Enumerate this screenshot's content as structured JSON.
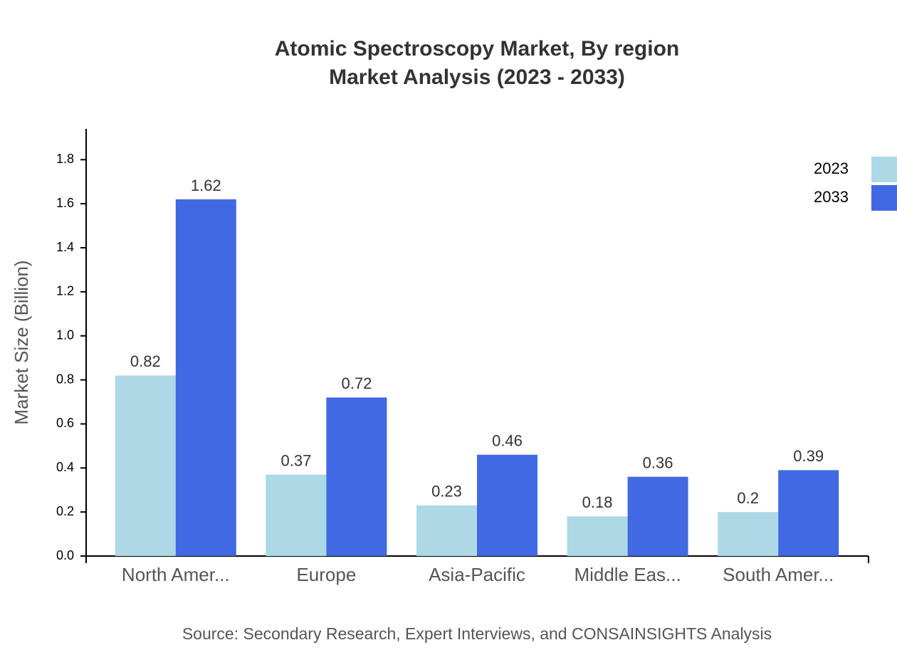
{
  "chart_data": {
    "type": "bar",
    "title": "Atomic Spectroscopy Market, By region",
    "subtitle": "Market Analysis (2023 - 2033)",
    "y_label": "Market Size (Billion)",
    "source": "Source: Secondary Research, Expert Interviews, and CONSAINSIGHTS Analysis",
    "categories": [
      "North Amer...",
      "Europe",
      "Asia-Pacific",
      "Middle Eas...",
      "South Amer..."
    ],
    "series": [
      {
        "name": "2023",
        "color": "#add8e6",
        "values": [
          0.82,
          0.37,
          0.23,
          0.18,
          0.2
        ]
      },
      {
        "name": "2033",
        "color": "#4169e1",
        "values": [
          1.62,
          0.72,
          0.46,
          0.36,
          0.39
        ]
      }
    ],
    "ylim": [
      0,
      1.94
    ],
    "yticks": [
      {
        "value": 0,
        "label": "0.0"
      },
      0.2,
      0.4,
      0.6,
      0.8,
      {
        "value": 1,
        "label": "1.0"
      },
      1.2,
      1.4,
      1.6,
      1.8
    ],
    "grid": false,
    "legend": "top-right"
  }
}
